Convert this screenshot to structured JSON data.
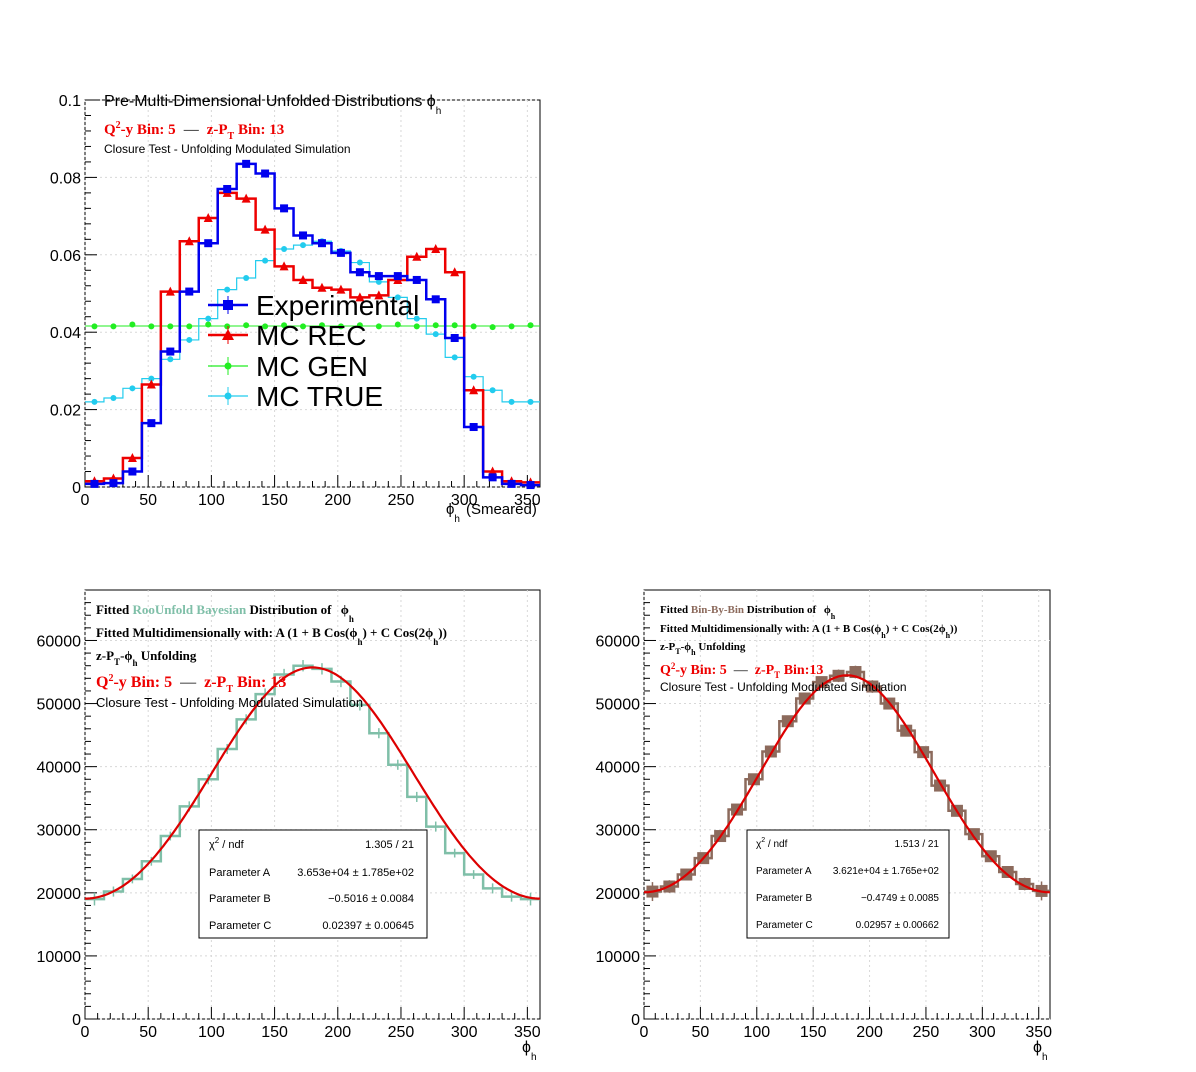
{
  "colors": {
    "experimental": "#0000ee",
    "mc_rec": "#ee0000",
    "mc_gen": "#22ee22",
    "mc_true": "#22ccee",
    "bayes": "#7fbfa8",
    "bbb": "#8c6a5c",
    "fit": "#dd0000"
  },
  "chart_data": [
    {
      "type": "line",
      "panel": "top-left",
      "title": "Pre-Multi-Dimensional Unfolded Distributions ϕ",
      "title_sub": "h",
      "line1_a": "Q",
      "line1_sup": "2",
      "line1_b": "-y Bin: 5",
      "line1_sep": "—",
      "line1_c": "z-P",
      "line1_sub": "T",
      "line1_d": " Bin: 13",
      "subtitle": "Closure Test - Unfolding Modulated Simulation",
      "xlabel": "ϕ",
      "xlabel_sub": "h",
      "xlabel_suffix": "(Smeared)",
      "xlim": [
        0,
        360
      ],
      "ylim": [
        0,
        0.1
      ],
      "x_ticks": [
        "0",
        "50",
        "100",
        "150",
        "200",
        "250",
        "300",
        "350"
      ],
      "y_ticks": [
        "0",
        "0.02",
        "0.04",
        "0.06",
        "0.08",
        "0.1"
      ],
      "legend_position": "center",
      "legend": [
        "Experimental",
        "MC REC",
        "MC GEN",
        "MC TRUE"
      ],
      "bin_width": 15,
      "x": [
        7.5,
        22.5,
        37.5,
        52.5,
        67.5,
        82.5,
        97.5,
        112.5,
        127.5,
        142.5,
        157.5,
        172.5,
        187.5,
        202.5,
        217.5,
        232.5,
        247.5,
        262.5,
        277.5,
        292.5,
        307.5,
        322.5,
        337.5,
        352.5
      ],
      "series": [
        {
          "name": "Experimental",
          "values": [
            0.0008,
            0.001,
            0.004,
            0.0165,
            0.035,
            0.0505,
            0.063,
            0.077,
            0.0835,
            0.081,
            0.072,
            0.065,
            0.063,
            0.0605,
            0.0555,
            0.0545,
            0.0545,
            0.0535,
            0.0485,
            0.0385,
            0.0155,
            0.0025,
            0.0008,
            0.0005
          ]
        },
        {
          "name": "MC REC",
          "values": [
            0.0015,
            0.0022,
            0.0075,
            0.0265,
            0.0505,
            0.0635,
            0.0695,
            0.076,
            0.0745,
            0.0665,
            0.057,
            0.0535,
            0.0515,
            0.051,
            0.049,
            0.0495,
            0.0535,
            0.0595,
            0.0615,
            0.0555,
            0.025,
            0.004,
            0.0015,
            0.0012
          ]
        },
        {
          "name": "MC GEN",
          "values": [
            0.0415,
            0.0415,
            0.042,
            0.0415,
            0.0415,
            0.0415,
            0.042,
            0.0415,
            0.0418,
            0.0415,
            0.0418,
            0.0415,
            0.0418,
            0.0415,
            0.0418,
            0.0415,
            0.042,
            0.0415,
            0.0418,
            0.0418,
            0.0415,
            0.0413,
            0.0415,
            0.0418
          ]
        },
        {
          "name": "MC TRUE",
          "values": [
            0.022,
            0.023,
            0.0255,
            0.028,
            0.033,
            0.038,
            0.0435,
            0.051,
            0.054,
            0.0585,
            0.0615,
            0.0625,
            0.0635,
            0.061,
            0.058,
            0.053,
            0.049,
            0.0435,
            0.0395,
            0.0335,
            0.0285,
            0.025,
            0.022,
            0.022
          ]
        }
      ]
    },
    {
      "type": "bar",
      "panel": "bottom-left",
      "title_a": "Fitted ",
      "title_b": "RooUnfold Bayesian",
      "title_c": " Distribution of ",
      "title_d": "ϕ",
      "title_e": "h",
      "fit_line_a": "Fitted Multidimensionally with: A (1 + B Cos(ϕ",
      "fit_line_b": "h",
      "fit_line_c": ") + C Cos(2ϕ",
      "fit_line_d": "h",
      "fit_line_e": "))",
      "unf_a": "z-P",
      "unf_b": "T",
      "unf_c": "-ϕ",
      "unf_d": "h",
      "unf_e": " Unfolding",
      "line1_a": "Q",
      "line1_sup": "2",
      "line1_b": "-y Bin: 5",
      "line1_sep": "—",
      "line1_c": "z-P",
      "line1_sub": "T",
      "line1_d": " Bin: 13",
      "subtitle": "Closure Test - Unfolding Modulated Simulation",
      "xlabel": "ϕ",
      "xlabel_sub": "h",
      "xlim": [
        0,
        360
      ],
      "ylim": [
        0,
        68000
      ],
      "x_ticks": [
        "0",
        "50",
        "100",
        "150",
        "200",
        "250",
        "300",
        "350"
      ],
      "y_ticks": [
        "0",
        "10000",
        "20000",
        "30000",
        "40000",
        "50000",
        "60000"
      ],
      "stats": {
        "chi2_label": "χ",
        "chi2_sup": "2",
        "chi2_suffix": " / ndf",
        "chi2_value": "1.305 / 21",
        "a_label": "Parameter A",
        "a_value": "3.653e+04 ± 1.785e+02",
        "b_label": "Parameter B",
        "b_value": "−0.5016 ± 0.0084",
        "c_label": "Parameter C",
        "c_value": "0.02397 ± 0.00645"
      },
      "fit": {
        "A": 36530,
        "B": -0.5016,
        "C": 0.02397
      },
      "bin_width": 15,
      "x": [
        7.5,
        22.5,
        37.5,
        52.5,
        67.5,
        82.5,
        97.5,
        112.5,
        127.5,
        142.5,
        157.5,
        172.5,
        187.5,
        202.5,
        217.5,
        232.5,
        247.5,
        262.5,
        277.5,
        292.5,
        307.5,
        322.5,
        337.5,
        352.5
      ],
      "values": [
        19000,
        20200,
        22200,
        25000,
        29000,
        33700,
        38000,
        42800,
        47500,
        51500,
        54600,
        56000,
        55500,
        53500,
        49800,
        45300,
        40300,
        35200,
        30500,
        26300,
        22900,
        20700,
        19400,
        19000
      ],
      "errors": [
        1000,
        800,
        700,
        700,
        700,
        800,
        800,
        800,
        800,
        900,
        900,
        900,
        900,
        900,
        900,
        800,
        800,
        800,
        800,
        700,
        700,
        800,
        800,
        1000
      ]
    },
    {
      "type": "bar",
      "panel": "bottom-right",
      "title_a": "Fitted ",
      "title_b": "Bin-By-Bin",
      "title_c": " Distribution of ",
      "title_d": "ϕ",
      "title_e": "h",
      "fit_line_a": "Fitted Multidimensionally with: A (1 + B Cos(ϕ",
      "fit_line_b": "h",
      "fit_line_c": ") + C Cos(2ϕ",
      "fit_line_d": "h",
      "fit_line_e": "))",
      "unf_a": "z-P",
      "unf_b": "T",
      "unf_c": "-ϕ",
      "unf_d": "h",
      "unf_e": " Unfolding",
      "line1_a": "Q",
      "line1_sup": "2",
      "line1_b": "-y Bin: 5",
      "line1_sep": "—",
      "line1_c": "z-P",
      "line1_sub": "T",
      "line1_d": " Bin:13",
      "subtitle": "Closure Test - Unfolding Modulated Simulation",
      "xlabel": "ϕ",
      "xlabel_sub": "h",
      "xlim": [
        0,
        360
      ],
      "ylim": [
        0,
        68000
      ],
      "x_ticks": [
        "0",
        "50",
        "100",
        "150",
        "200",
        "250",
        "300",
        "350"
      ],
      "y_ticks": [
        "0",
        "10000",
        "20000",
        "30000",
        "40000",
        "50000",
        "60000"
      ],
      "stats": {
        "chi2_label": "χ",
        "chi2_sup": "2",
        "chi2_suffix": " / ndf",
        "chi2_value": "1.513 / 21",
        "a_label": "Parameter A",
        "a_value": "3.621e+04 ± 1.765e+02",
        "b_label": "Parameter B",
        "b_value": "−0.4749 ± 0.0085",
        "c_label": "Parameter C",
        "c_value": "0.02957 ± 0.00662"
      },
      "fit": {
        "A": 36210,
        "B": -0.4749,
        "C": 0.02957
      },
      "bin_width": 15,
      "x": [
        7.5,
        22.5,
        37.5,
        52.5,
        67.5,
        82.5,
        97.5,
        112.5,
        127.5,
        142.5,
        157.5,
        172.5,
        187.5,
        202.5,
        217.5,
        232.5,
        247.5,
        262.5,
        277.5,
        292.5,
        307.5,
        322.5,
        337.5,
        352.5
      ],
      "values": [
        20200,
        21000,
        22900,
        25500,
        29000,
        33200,
        38000,
        42400,
        47200,
        50800,
        53400,
        54400,
        55000,
        52700,
        50000,
        45700,
        42300,
        37000,
        33000,
        29300,
        25800,
        23300,
        21400,
        20300
      ],
      "errors": [
        1500,
        1000,
        900,
        800,
        900,
        900,
        900,
        900,
        900,
        900,
        900,
        1000,
        1000,
        1000,
        900,
        900,
        900,
        900,
        900,
        800,
        800,
        900,
        1000,
        1500
      ]
    }
  ]
}
